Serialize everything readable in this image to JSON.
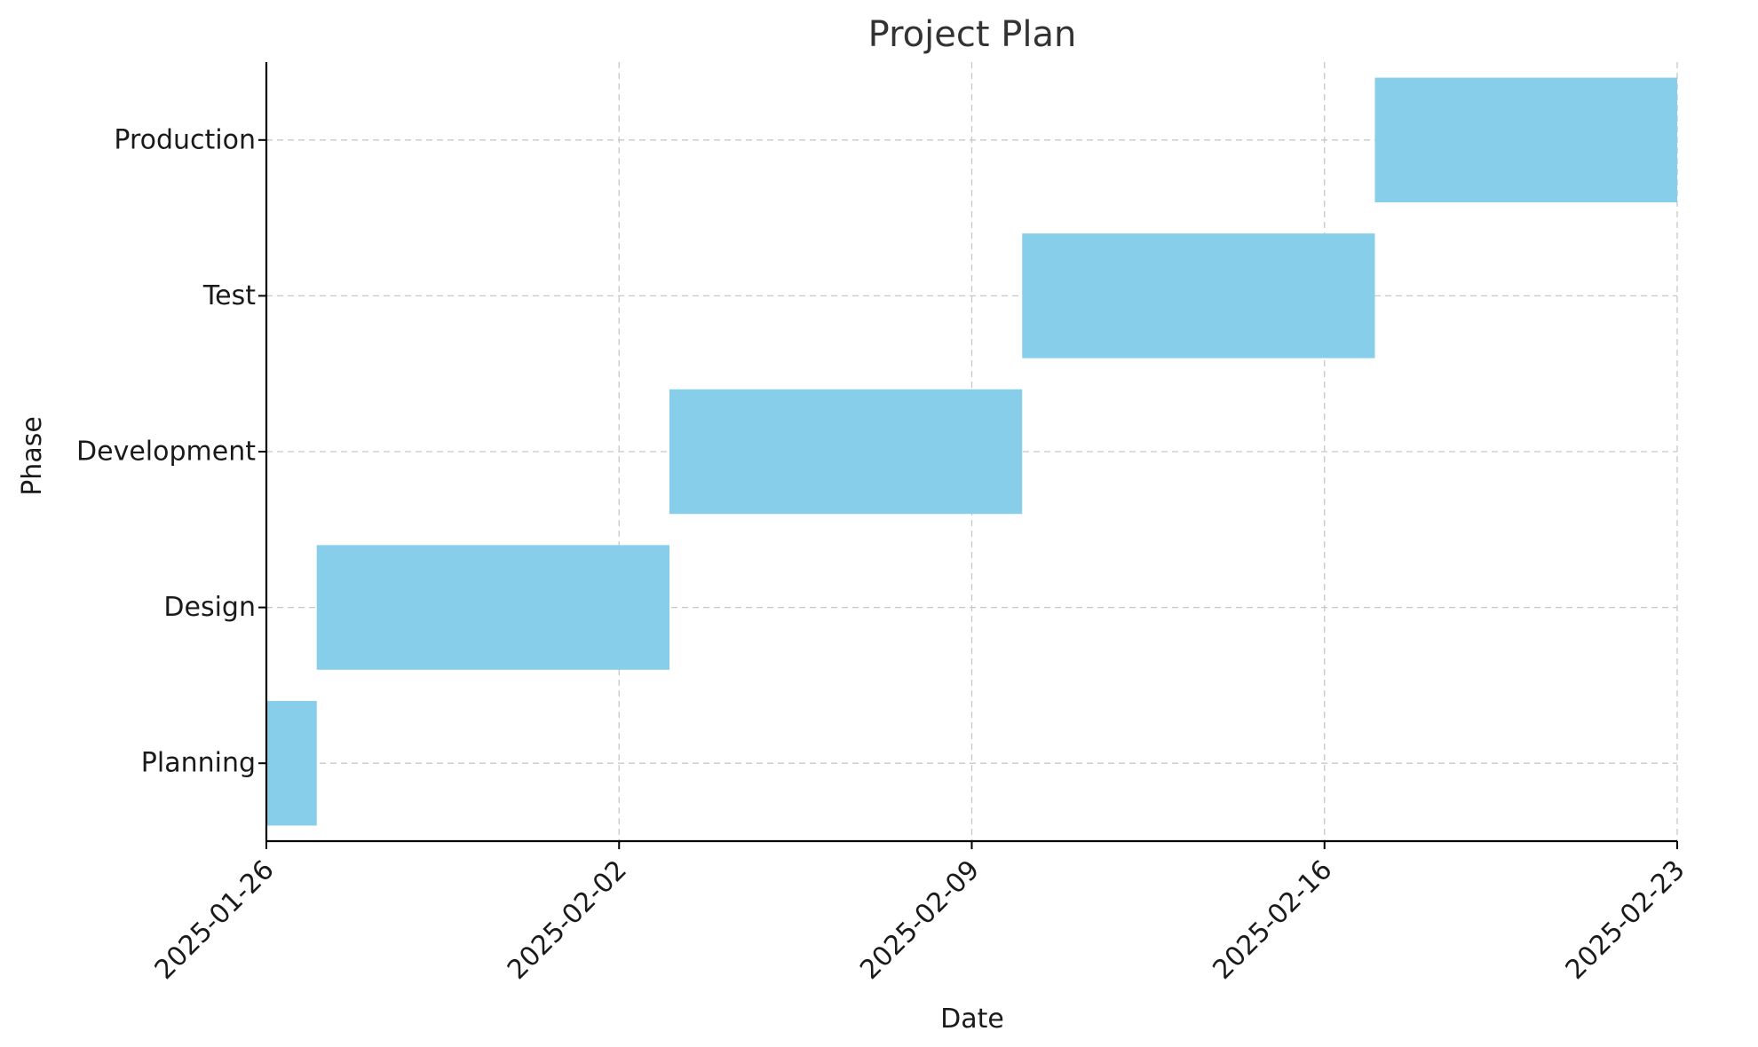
{
  "chart_data": {
    "type": "gantt",
    "title": "Project Plan",
    "xlabel": "Date",
    "ylabel": "Phase",
    "x_ticks": [
      "2025-01-26",
      "2025-02-02",
      "2025-02-09",
      "2025-02-16",
      "2025-02-23"
    ],
    "xlim": [
      "2025-01-26",
      "2025-02-23"
    ],
    "categories": [
      "Planning",
      "Design",
      "Development",
      "Test",
      "Production"
    ],
    "tasks": [
      {
        "phase": "Planning",
        "start": "2025-01-26",
        "end": "2025-01-27"
      },
      {
        "phase": "Design",
        "start": "2025-01-27",
        "end": "2025-02-03"
      },
      {
        "phase": "Development",
        "start": "2025-02-03",
        "end": "2025-02-10"
      },
      {
        "phase": "Test",
        "start": "2025-02-10",
        "end": "2025-02-17"
      },
      {
        "phase": "Production",
        "start": "2025-02-17",
        "end": "2025-02-23"
      }
    ],
    "bar_color": "#87CEEB",
    "grid": true
  }
}
